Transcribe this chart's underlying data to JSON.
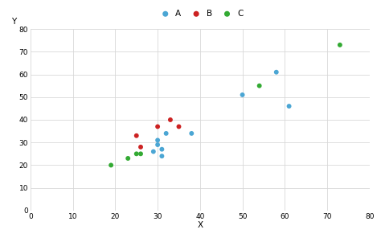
{
  "series_A": {
    "x": [
      29,
      30,
      30,
      31,
      31,
      32,
      38,
      50,
      58,
      61
    ],
    "y": [
      26,
      29,
      31,
      24,
      27,
      34,
      34,
      51,
      61,
      46
    ],
    "color": "#4ba6d4",
    "label": "A"
  },
  "series_B": {
    "x": [
      25,
      26,
      30,
      33,
      35
    ],
    "y": [
      33,
      28,
      37,
      40,
      37
    ],
    "color": "#cc2222",
    "label": "B"
  },
  "series_C": {
    "x": [
      19,
      23,
      25,
      26,
      54,
      73
    ],
    "y": [
      20,
      23,
      25,
      25,
      55,
      73
    ],
    "color": "#33aa33",
    "label": "C"
  },
  "xlabel": "X",
  "ylabel": "Y",
  "xlim": [
    0,
    80
  ],
  "ylim": [
    0,
    80
  ],
  "xticks": [
    0,
    10,
    20,
    30,
    40,
    50,
    60,
    70,
    80
  ],
  "yticks": [
    0,
    10,
    20,
    30,
    40,
    50,
    60,
    70,
    80
  ],
  "background_color": "#ffffff",
  "grid_color": "#d8d8d8",
  "marker_size": 18,
  "legend_fontsize": 7.5,
  "axis_fontsize": 7.5,
  "tick_fontsize": 6.5
}
